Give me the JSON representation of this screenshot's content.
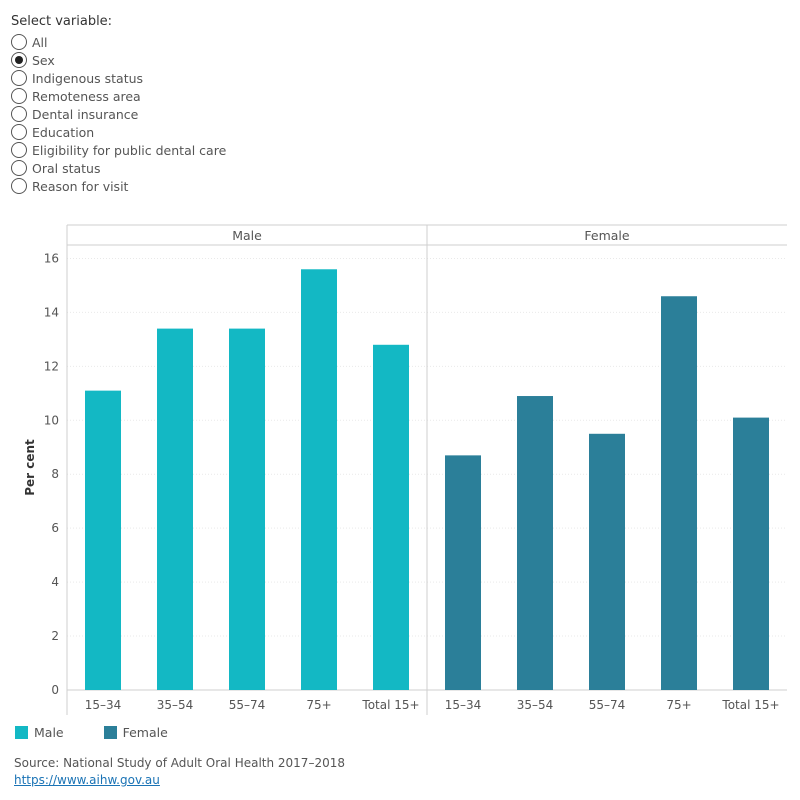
{
  "filter": {
    "title": "Select variable:",
    "options": [
      {
        "label": "All",
        "checked": false
      },
      {
        "label": "Sex",
        "checked": true
      },
      {
        "label": "Indigenous status",
        "checked": false
      },
      {
        "label": "Remoteness area",
        "checked": false
      },
      {
        "label": "Dental insurance",
        "checked": false
      },
      {
        "label": "Education",
        "checked": false
      },
      {
        "label": "Eligibility for public dental care",
        "checked": false
      },
      {
        "label": "Oral status",
        "checked": false
      },
      {
        "label": "Reason for visit",
        "checked": false
      }
    ]
  },
  "chart_data": {
    "type": "bar",
    "ylabel": "Per cent",
    "ylim": [
      0,
      16.5
    ],
    "yticks": [
      0,
      2,
      4,
      6,
      8,
      10,
      12,
      14,
      16
    ],
    "grid": true,
    "categories": [
      "15–34",
      "35–54",
      "55–74",
      "75+",
      "Total 15+"
    ],
    "panels": [
      {
        "name": "Male",
        "color": "#13b8c4",
        "values": [
          11.1,
          13.4,
          13.4,
          15.6,
          12.8
        ]
      },
      {
        "name": "Female",
        "color": "#2b7f99",
        "values": [
          8.7,
          10.9,
          9.5,
          14.6,
          10.1
        ]
      }
    ]
  },
  "legend": [
    {
      "label": "Male",
      "color": "#13b8c4"
    },
    {
      "label": "Female",
      "color": "#2b7f99"
    }
  ],
  "source": {
    "text": "Source: National Study of Adult Oral Health 2017–2018",
    "link": "https://www.aihw.gov.au"
  }
}
